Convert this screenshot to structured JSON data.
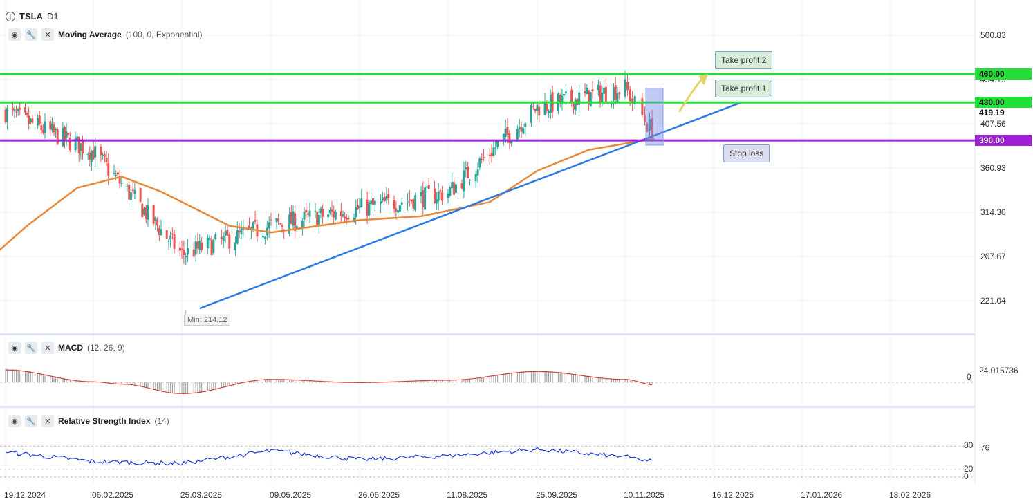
{
  "header": {
    "symbol": "TSLA",
    "timeframe": "D1"
  },
  "indicators": {
    "ma": {
      "name": "Moving Average",
      "params": "(100, 0, Exponential)"
    },
    "macd": {
      "name": "MACD",
      "params": "(12, 26, 9)"
    },
    "rsi": {
      "name": "Relative Strength Index",
      "params": "(14)"
    }
  },
  "price_axis": {
    "ticks": [
      "500.83",
      "454.19",
      "407.56",
      "360.93",
      "314.30",
      "267.67",
      "221.04"
    ]
  },
  "price_labels": {
    "last": "419.19",
    "l460": "460.00",
    "l430": "430.00",
    "l390": "390.00"
  },
  "annotations": {
    "tp2": "Take profit 2",
    "tp1": "Take profit 1",
    "sl": "Stop loss",
    "min": "Min: 214.12"
  },
  "macd_axis": {
    "value": "24.015736",
    "zero": "0"
  },
  "rsi_axis": {
    "value": "76",
    "l80": "80",
    "l20": "20",
    "l0": "0"
  },
  "x_axis": [
    "19.12.2024",
    "06.02.2025",
    "25.03.2025",
    "09.05.2025",
    "26.06.2025",
    "11.08.2025",
    "25.09.2025",
    "10.11.2025",
    "16.12.2025",
    "17.01.2026",
    "18.02.2026"
  ],
  "colors": {
    "up": "#26a69a",
    "down": "#ef5350",
    "ma": "#e8893a",
    "trend": "#2979e6",
    "green_level": "#22e03a",
    "purple_level": "#a020d8",
    "macd_signal": "#d04040",
    "rsi_line": "#1a3ad8"
  },
  "chart_data": [
    {
      "type": "candlestick",
      "title": "TSLA D1",
      "ylim": [
        180,
        520
      ],
      "anchors": [
        [
          "19.12.2024",
          420
        ],
        [
          "06.02.2025",
          378
        ],
        [
          "25.03.2025",
          270
        ],
        [
          "09.05.2025",
          300
        ],
        [
          "26.06.2025",
          318
        ],
        [
          "11.08.2025",
          335
        ],
        [
          "25.09.2025",
          425
        ],
        [
          "10.11.2025",
          445
        ],
        [
          "22.11.2025",
          395
        ]
      ],
      "last_close": 419.19,
      "min_price": 214.12,
      "levels": [
        {
          "label": "Take profit 2",
          "value": 460.0
        },
        {
          "label": "Take profit 1",
          "value": 430.0
        },
        {
          "label": "Stop loss",
          "value": 390.0
        }
      ],
      "trendline": [
        [
          "03.04.2025",
          213
        ],
        [
          "26.12.2025",
          430
        ]
      ],
      "ma_series": {
        "name": "Moving Average",
        "points": [
          [
            "13.12.2024",
            270
          ],
          [
            "31.12.2024",
            300
          ],
          [
            "28.01.2025",
            340
          ],
          [
            "21.02.2025",
            352
          ],
          [
            "14.03.2025",
            336
          ],
          [
            "18.04.2025",
            300
          ],
          [
            "09.05.2025",
            293
          ],
          [
            "26.06.2025",
            306
          ],
          [
            "28.07.2025",
            310
          ],
          [
            "01.09.2025",
            325
          ],
          [
            "25.09.2025",
            358
          ],
          [
            "22.10.2025",
            380
          ],
          [
            "22.11.2025",
            392
          ]
        ]
      }
    },
    {
      "type": "histogram",
      "title": "MACD",
      "ylim": [
        -30,
        30
      ],
      "value": 24.015736,
      "hist_anchors": [
        [
          "19.12.2024",
          16
        ],
        [
          "06.02.2025",
          1
        ],
        [
          "21.02.2025",
          -2
        ],
        [
          "25.03.2025",
          -14
        ],
        [
          "09.05.2025",
          4
        ],
        [
          "26.06.2025",
          0
        ],
        [
          "11.08.2025",
          3
        ],
        [
          "25.09.2025",
          14
        ],
        [
          "10.11.2025",
          4
        ],
        [
          "22.11.2025",
          -3
        ]
      ]
    },
    {
      "type": "line",
      "title": "Relative Strength Index",
      "ylim": [
        0,
        100
      ],
      "levels": [
        80,
        20,
        0
      ],
      "value": 76,
      "anchors": [
        [
          "19.12.2024",
          65
        ],
        [
          "06.02.2025",
          40
        ],
        [
          "25.03.2025",
          35
        ],
        [
          "09.05.2025",
          68
        ],
        [
          "26.06.2025",
          45
        ],
        [
          "11.08.2025",
          55
        ],
        [
          "25.09.2025",
          72
        ],
        [
          "10.11.2025",
          52
        ],
        [
          "22.11.2025",
          40
        ]
      ]
    }
  ]
}
